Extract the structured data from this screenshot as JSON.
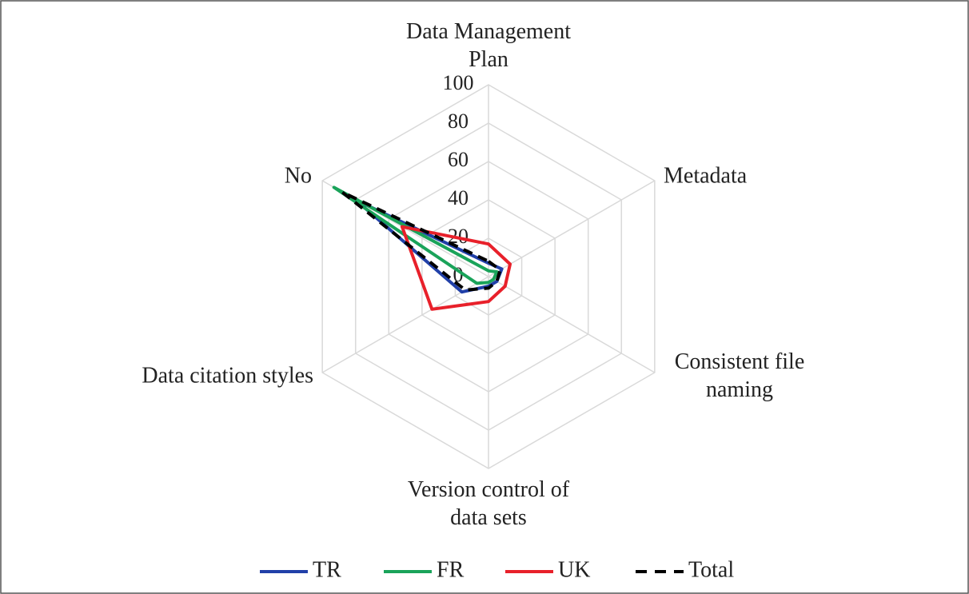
{
  "chart_data": {
    "type": "radar",
    "categories": [
      "Data Management Plan",
      "Metadata",
      "Consistent file naming",
      "Version control of data sets",
      "Data citation styles",
      "No"
    ],
    "series": [
      {
        "name": "TR",
        "color": "#2140a8",
        "values": [
          7,
          8,
          5,
          5,
          16,
          80
        ]
      },
      {
        "name": "FR",
        "color": "#1aa35a",
        "values": [
          3,
          5,
          3,
          3,
          7,
          93
        ]
      },
      {
        "name": "UK",
        "color": "#e8202a",
        "values": [
          17,
          13,
          10,
          13,
          34,
          52
        ]
      },
      {
        "name": "Total",
        "color": "#000000",
        "dashed": true,
        "values": [
          8,
          7,
          5,
          6,
          14,
          88
        ]
      }
    ],
    "rlim": [
      0,
      100
    ],
    "rticks": [
      0,
      20,
      40,
      60,
      80,
      100
    ],
    "grid": true,
    "legend": "bottom"
  }
}
